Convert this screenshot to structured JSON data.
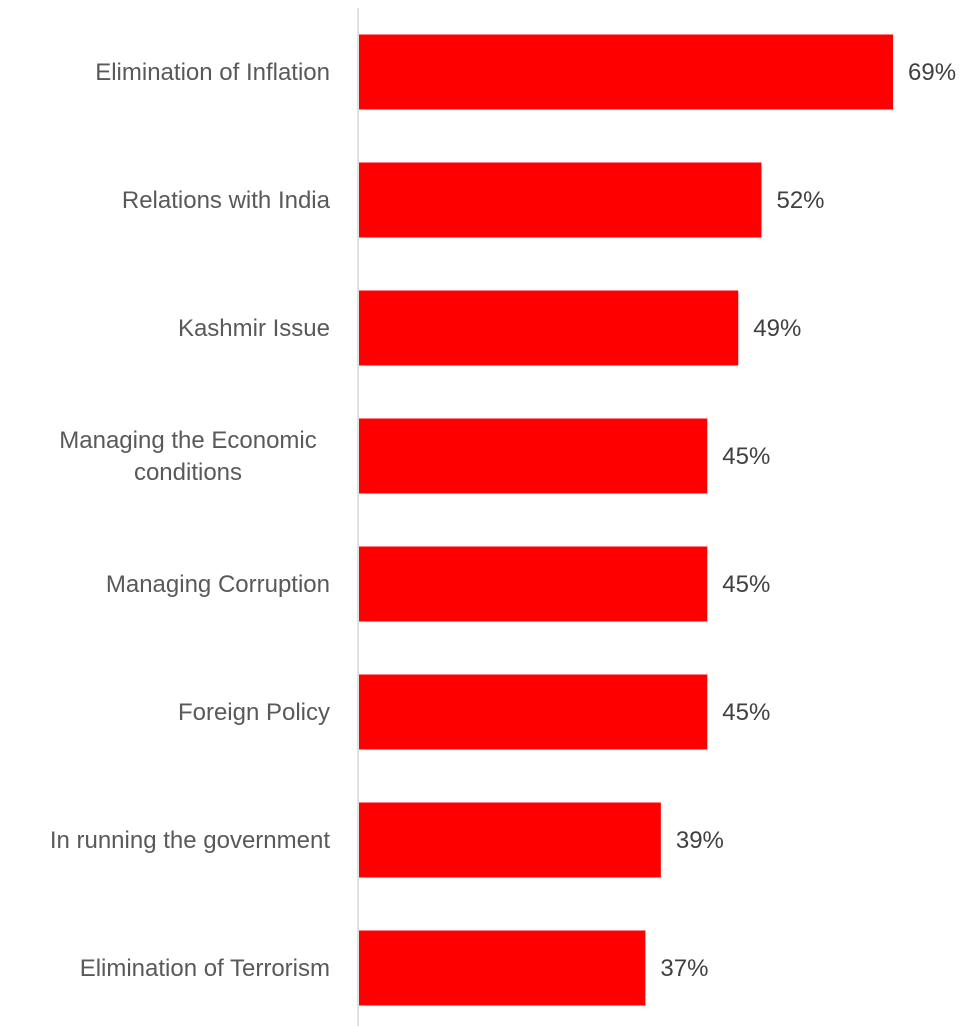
{
  "chart_data": {
    "type": "bar",
    "orientation": "horizontal",
    "categories": [
      [
        "Elimination of Inflation"
      ],
      [
        "Relations with India"
      ],
      [
        "Kashmir Issue"
      ],
      [
        "Managing the Economic",
        "conditions"
      ],
      [
        "Managing Corruption"
      ],
      [
        "Foreign Policy"
      ],
      [
        "In running the government"
      ],
      [
        "Elimination of Terrorism"
      ]
    ],
    "values": [
      69,
      52,
      49,
      45,
      45,
      45,
      39,
      37
    ],
    "value_labels": [
      "69%",
      "52%",
      "49%",
      "45%",
      "45%",
      "45%",
      "39%",
      "37%"
    ],
    "unit": "%",
    "xlim": [
      0,
      100
    ],
    "bar_color": "#ff0000",
    "axis_color": "#d9d9d9",
    "grid": false,
    "legend": "none",
    "title": "",
    "xlabel": "",
    "ylabel": ""
  }
}
